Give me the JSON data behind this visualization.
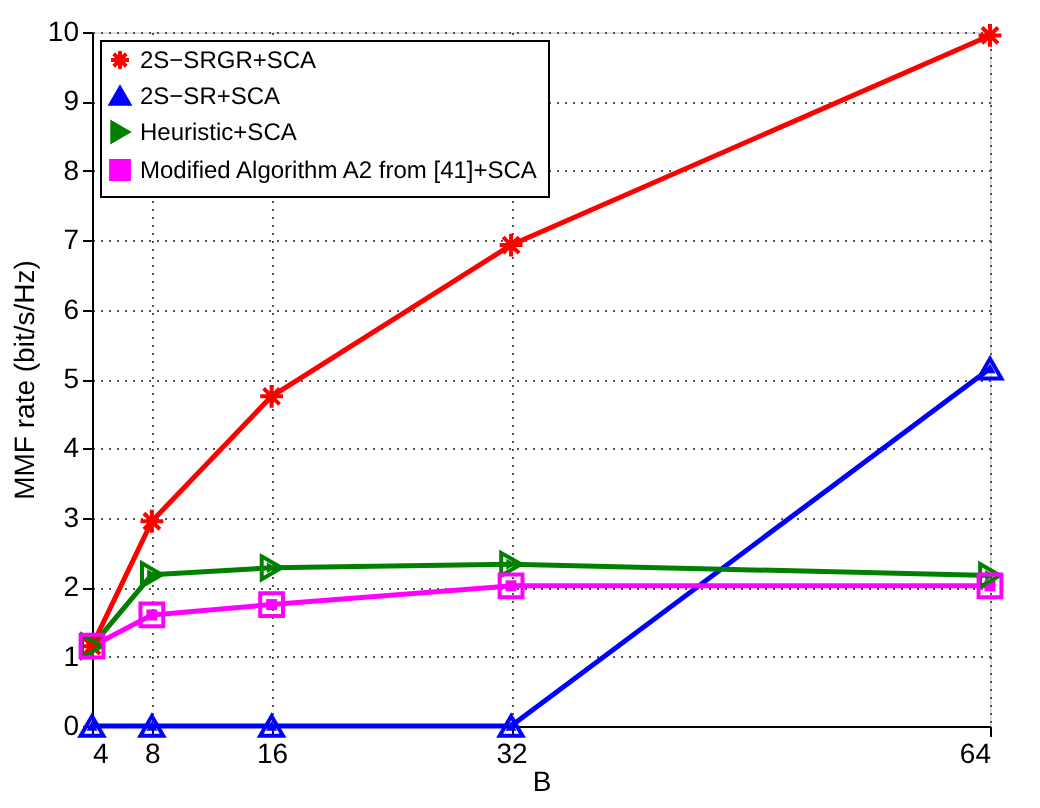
{
  "chart_data": {
    "type": "line",
    "xlabel": "B",
    "ylabel": "MMF rate (bit/s/Hz)",
    "x": [
      4,
      8,
      16,
      32,
      64
    ],
    "xlim": [
      4,
      64
    ],
    "xticks": [
      4,
      8,
      16,
      32,
      64
    ],
    "ylim": [
      0,
      10
    ],
    "yticks": [
      0,
      1,
      2,
      3,
      4,
      5,
      6,
      7,
      8,
      9,
      10
    ],
    "grid": true,
    "legend": "top left",
    "line_style": "solid",
    "series": [
      {
        "name": "2S−SRGR+SCA",
        "color": "#ff0000",
        "marker": "cross",
        "values": [
          1.15,
          2.95,
          4.75,
          6.93,
          9.95
        ]
      },
      {
        "name": "2S−SR+SCA",
        "color": "#0000ff",
        "marker": "triangle",
        "values": [
          0,
          0,
          0,
          0,
          5.15
        ]
      },
      {
        "name": "Heuristic+SCA",
        "color": "#008000",
        "marker": "triangle-right",
        "values": [
          1.15,
          2.18,
          2.28,
          2.33,
          2.17
        ]
      },
      {
        "name": "Modified Algorithm A2 from [41]+SCA",
        "color": "#ff00ff",
        "marker": "square",
        "values": [
          1.15,
          1.6,
          1.75,
          2.02,
          2.02
        ]
      }
    ]
  }
}
